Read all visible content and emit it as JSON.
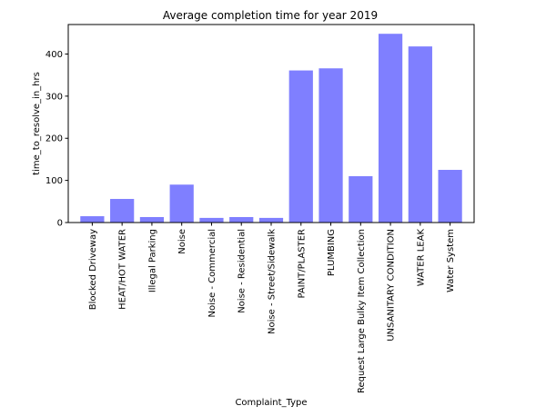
{
  "chart_data": {
    "type": "bar",
    "title": "Average completion time for year 2019",
    "xlabel": "Complaint_Type",
    "ylabel": "time_to_resolve_in_hrs",
    "categories": [
      "Blocked Driveway",
      "HEAT/HOT WATER",
      "Illegal Parking",
      "Noise",
      "Noise - Commercial",
      "Noise - Residential",
      "Noise - Street/Sidewalk",
      "PAINT/PLASTER",
      "PLUMBING",
      "Request Large Bulky Item Collection",
      "UNSANITARY CONDITION",
      "WATER LEAK",
      "Water System"
    ],
    "values": [
      15,
      56,
      13,
      90,
      11,
      13,
      11,
      361,
      366,
      110,
      448,
      418,
      125
    ],
    "ylim": [
      0,
      470
    ],
    "yticks": [
      0,
      100,
      200,
      300,
      400
    ],
    "bar_color": "#7f7fff",
    "grid": false,
    "legend": "none"
  }
}
